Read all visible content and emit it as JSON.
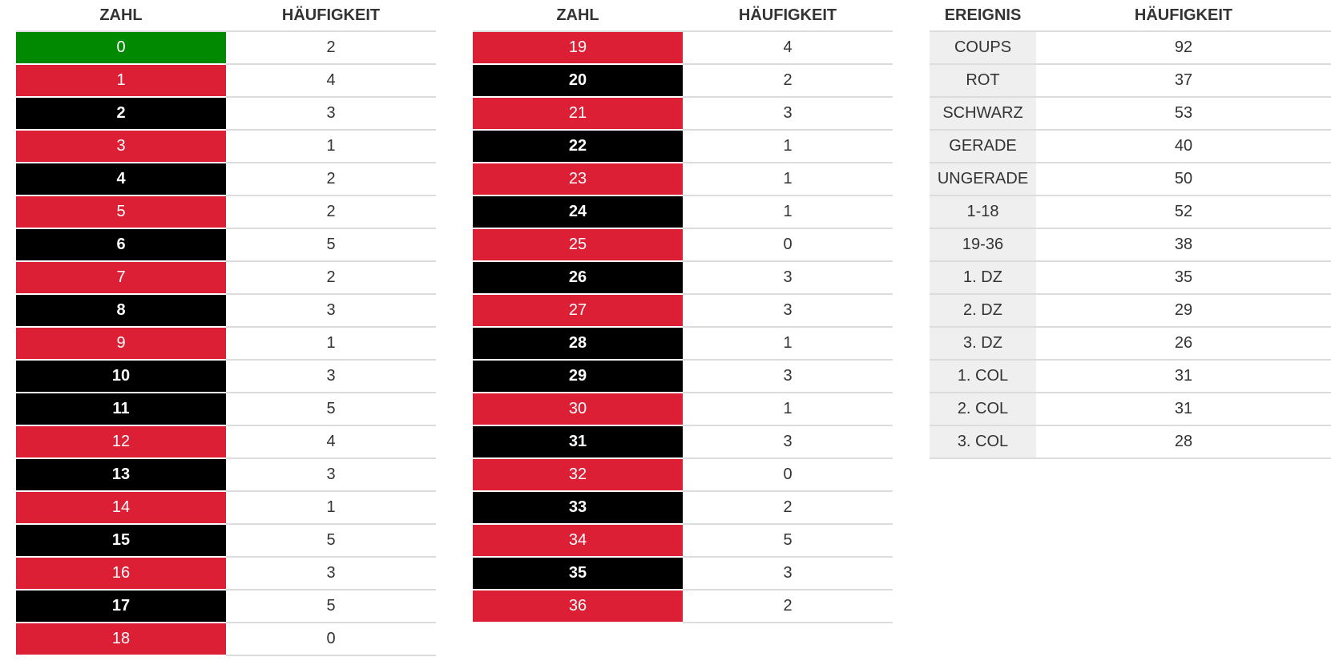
{
  "colors": {
    "red": "#dc1f35",
    "black": "#000000",
    "green": "#018a01",
    "event_bg": "#efefef"
  },
  "tables": [
    {
      "headers": [
        "ZAHL",
        "HÄUFIGKEIT"
      ],
      "rows": [
        {
          "label": "0",
          "count": "2",
          "color": "green"
        },
        {
          "label": "1",
          "count": "4",
          "color": "red"
        },
        {
          "label": "2",
          "count": "3",
          "color": "black"
        },
        {
          "label": "3",
          "count": "1",
          "color": "red"
        },
        {
          "label": "4",
          "count": "2",
          "color": "black"
        },
        {
          "label": "5",
          "count": "2",
          "color": "red"
        },
        {
          "label": "6",
          "count": "5",
          "color": "black"
        },
        {
          "label": "7",
          "count": "2",
          "color": "red"
        },
        {
          "label": "8",
          "count": "3",
          "color": "black"
        },
        {
          "label": "9",
          "count": "1",
          "color": "red"
        },
        {
          "label": "10",
          "count": "3",
          "color": "black"
        },
        {
          "label": "11",
          "count": "5",
          "color": "black"
        },
        {
          "label": "12",
          "count": "4",
          "color": "red"
        },
        {
          "label": "13",
          "count": "3",
          "color": "black"
        },
        {
          "label": "14",
          "count": "1",
          "color": "red"
        },
        {
          "label": "15",
          "count": "5",
          "color": "black"
        },
        {
          "label": "16",
          "count": "3",
          "color": "red"
        },
        {
          "label": "17",
          "count": "5",
          "color": "black"
        },
        {
          "label": "18",
          "count": "0",
          "color": "red"
        }
      ]
    },
    {
      "headers": [
        "ZAHL",
        "HÄUFIGKEIT"
      ],
      "rows": [
        {
          "label": "19",
          "count": "4",
          "color": "red"
        },
        {
          "label": "20",
          "count": "2",
          "color": "black"
        },
        {
          "label": "21",
          "count": "3",
          "color": "red"
        },
        {
          "label": "22",
          "count": "1",
          "color": "black"
        },
        {
          "label": "23",
          "count": "1",
          "color": "red"
        },
        {
          "label": "24",
          "count": "1",
          "color": "black"
        },
        {
          "label": "25",
          "count": "0",
          "color": "red"
        },
        {
          "label": "26",
          "count": "3",
          "color": "black"
        },
        {
          "label": "27",
          "count": "3",
          "color": "red"
        },
        {
          "label": "28",
          "count": "1",
          "color": "black"
        },
        {
          "label": "29",
          "count": "3",
          "color": "black"
        },
        {
          "label": "30",
          "count": "1",
          "color": "red"
        },
        {
          "label": "31",
          "count": "3",
          "color": "black"
        },
        {
          "label": "32",
          "count": "0",
          "color": "red"
        },
        {
          "label": "33",
          "count": "2",
          "color": "black"
        },
        {
          "label": "34",
          "count": "5",
          "color": "red"
        },
        {
          "label": "35",
          "count": "3",
          "color": "black"
        },
        {
          "label": "36",
          "count": "2",
          "color": "red"
        }
      ]
    },
    {
      "headers": [
        "EREIGNIS",
        "HÄUFIGKEIT"
      ],
      "rows": [
        {
          "label": "COUPS",
          "count": "92",
          "color": "event"
        },
        {
          "label": "ROT",
          "count": "37",
          "color": "event"
        },
        {
          "label": "SCHWARZ",
          "count": "53",
          "color": "event"
        },
        {
          "label": "GERADE",
          "count": "40",
          "color": "event"
        },
        {
          "label": "UNGERADE",
          "count": "50",
          "color": "event"
        },
        {
          "label": "1-18",
          "count": "52",
          "color": "event"
        },
        {
          "label": "19-36",
          "count": "38",
          "color": "event"
        },
        {
          "label": "1. DZ",
          "count": "35",
          "color": "event"
        },
        {
          "label": "2. DZ",
          "count": "29",
          "color": "event"
        },
        {
          "label": "3. DZ",
          "count": "26",
          "color": "event"
        },
        {
          "label": "1. COL",
          "count": "31",
          "color": "event"
        },
        {
          "label": "2. COL",
          "count": "31",
          "color": "event"
        },
        {
          "label": "3. COL",
          "count": "28",
          "color": "event"
        }
      ]
    }
  ]
}
